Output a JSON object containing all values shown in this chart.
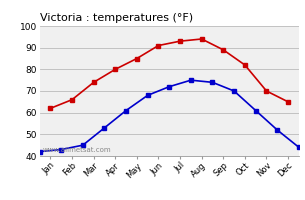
{
  "title": "Victoria : temperatures (°F)",
  "months": [
    "Jan",
    "Feb",
    "Mar",
    "Apr",
    "May",
    "Jun",
    "Jul",
    "Aug",
    "Sep",
    "Oct",
    "Nov",
    "Dec"
  ],
  "high_temps": [
    62,
    66,
    74,
    80,
    85,
    91,
    93,
    94,
    89,
    82,
    70,
    65
  ],
  "low_temps": [
    42,
    43,
    45,
    53,
    61,
    68,
    72,
    75,
    74,
    70,
    61,
    52,
    44
  ],
  "low_temps_x": [
    -0.5,
    0.5,
    1.5,
    2.5,
    3.5,
    4.5,
    5.5,
    6.5,
    7.5,
    8.5,
    9.5,
    10.5,
    11.5
  ],
  "high_color": "#cc0000",
  "low_color": "#0000cc",
  "ylim": [
    40,
    100
  ],
  "yticks": [
    40,
    50,
    60,
    70,
    80,
    90,
    100
  ],
  "grid_color": "#bbbbbb",
  "background_color": "#ffffff",
  "plot_bg_color": "#f0f0f0",
  "watermark": "www.allmetsat.com",
  "marker": "s",
  "marker_size": 2.5,
  "line_width": 1.2
}
